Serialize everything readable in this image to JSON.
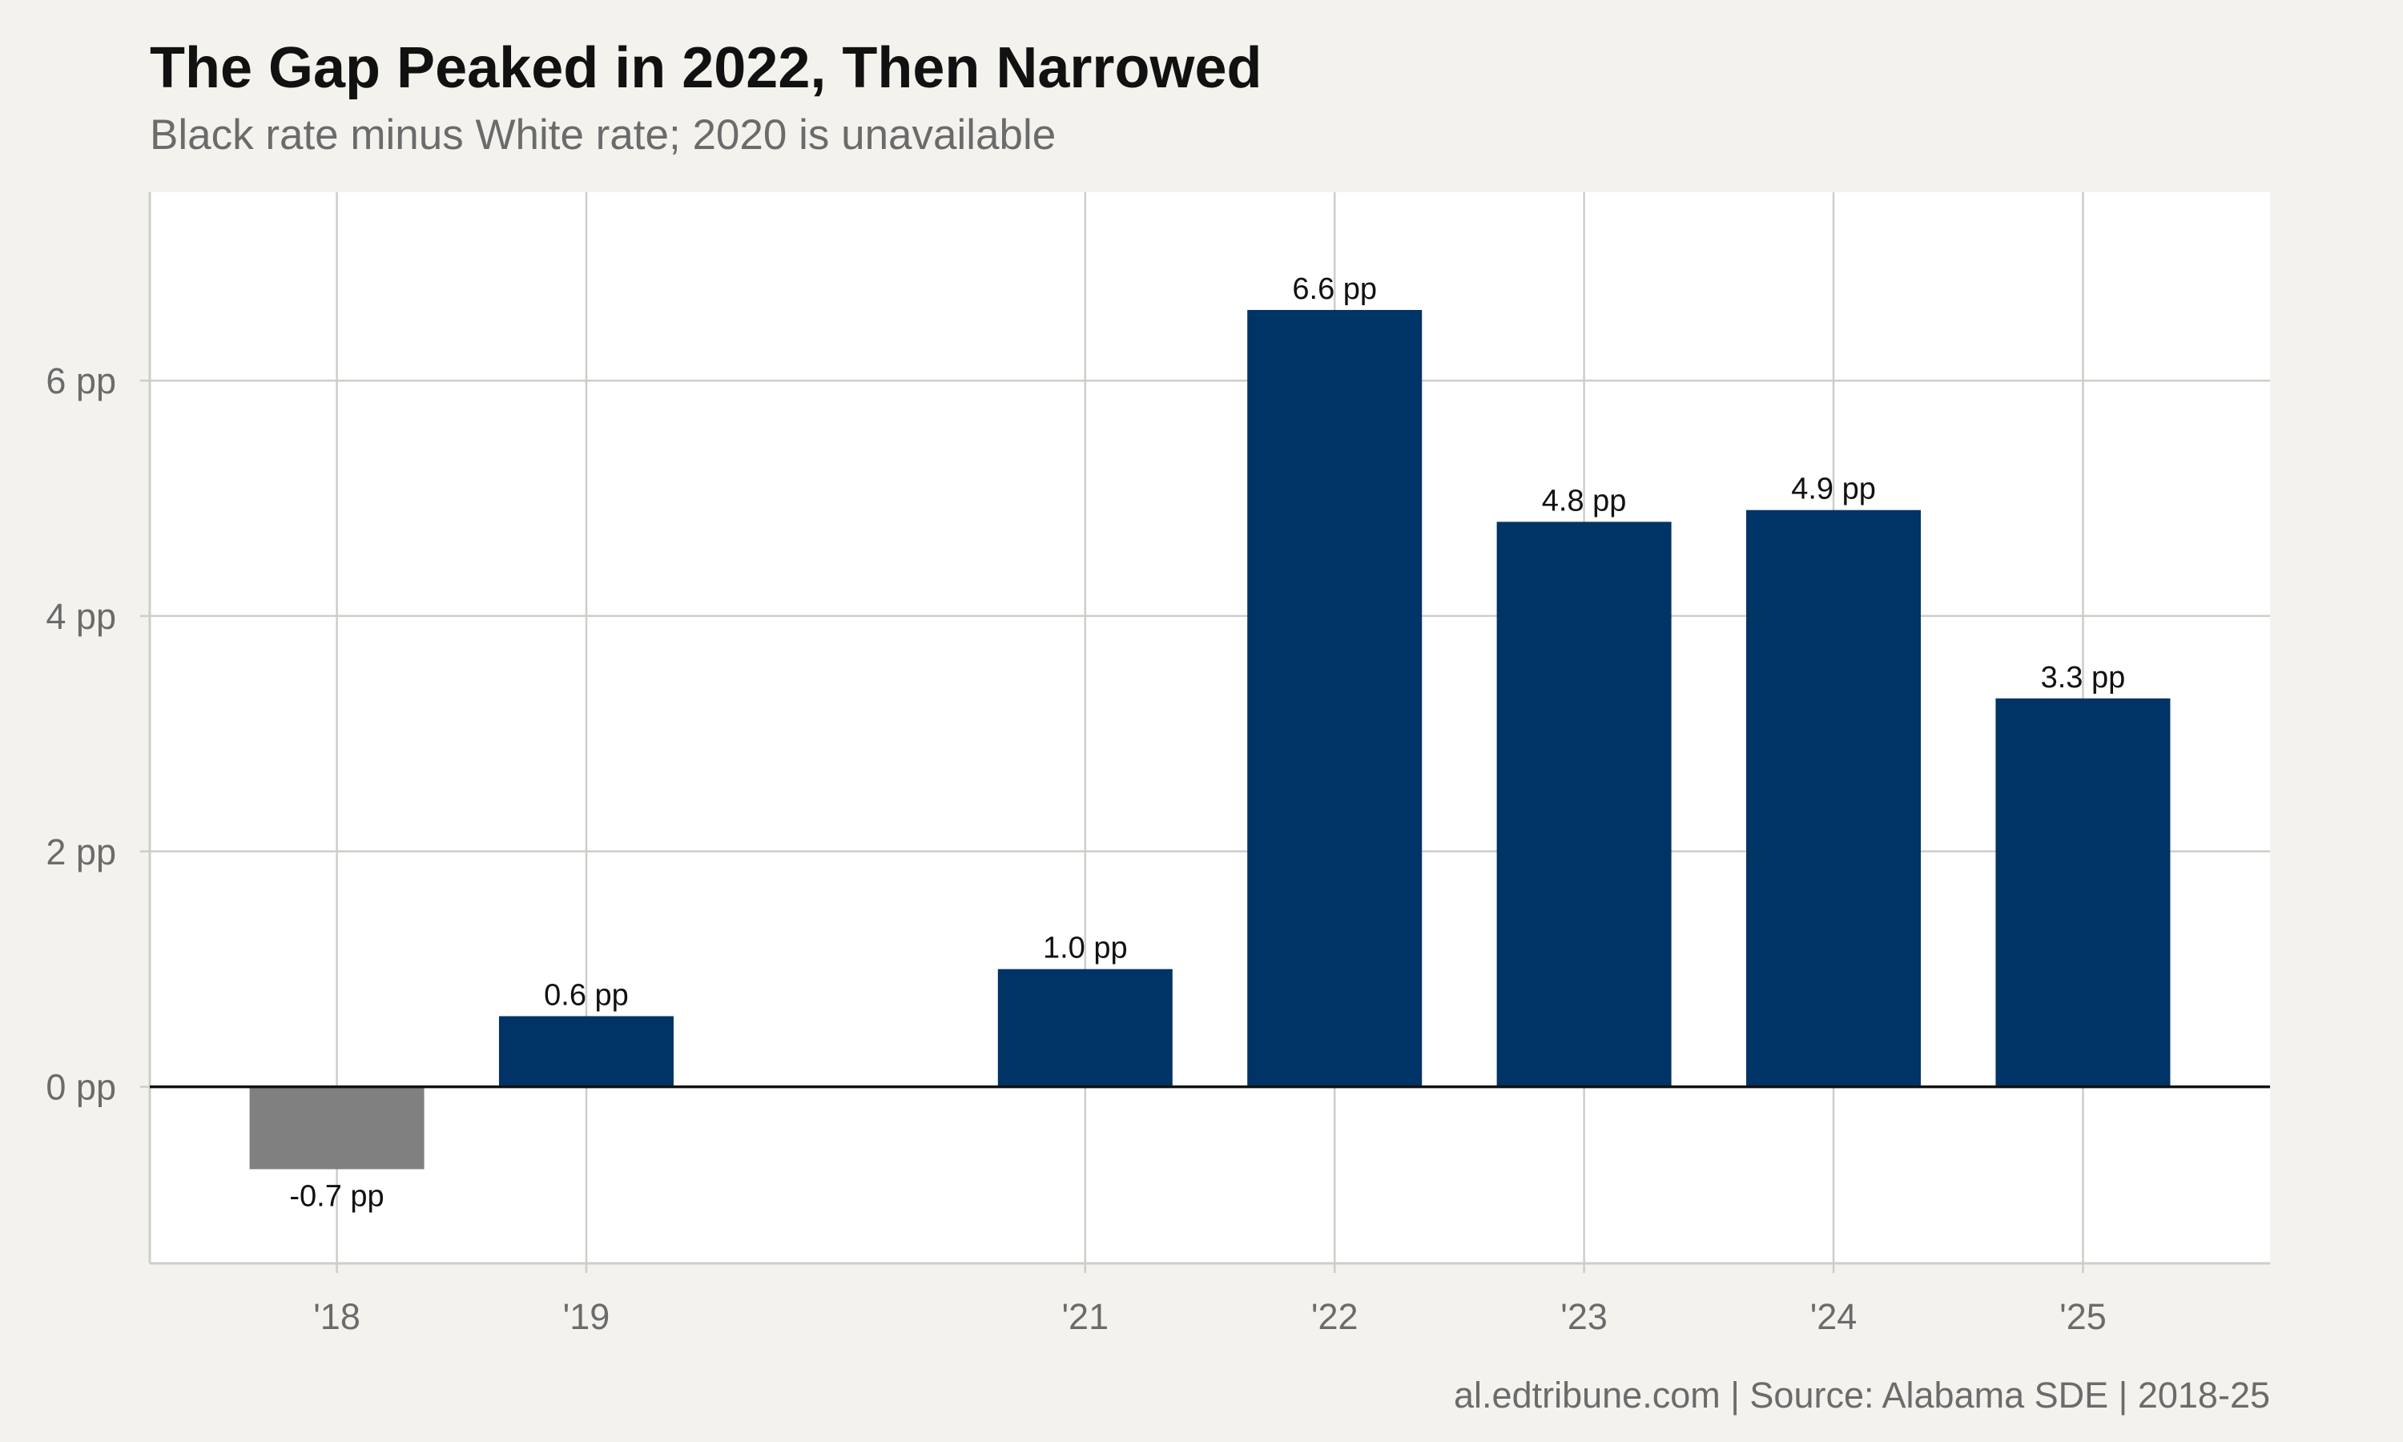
{
  "title": "The Gap Peaked in 2022, Then Narrowed",
  "subtitle": "Black rate minus White rate; 2020 is unavailable",
  "caption": "al.edtribune.com | Source: Alabama SDE | 2018-25",
  "colors": {
    "background": "#f4f2ed",
    "panel": "#ffffff",
    "grid": "#cfcdc8",
    "positive_bar": "#003366",
    "negative_bar": "#808080",
    "zero_line": "#111111"
  },
  "chart_data": {
    "type": "bar",
    "x_years": [
      2018,
      2019,
      2021,
      2022,
      2023,
      2024,
      2025
    ],
    "categories": [
      "'18",
      "'19",
      "'21",
      "'22",
      "'23",
      "'24",
      "'25"
    ],
    "values": [
      -0.7,
      0.6,
      1.0,
      6.6,
      4.8,
      4.9,
      3.3
    ],
    "data_labels": [
      "-0.7 pp",
      "0.6 pp",
      "1.0 pp",
      "6.6 pp",
      "4.8 pp",
      "4.9 pp",
      "3.3 pp"
    ],
    "y_ticks": [
      0,
      2,
      4,
      6
    ],
    "y_tick_labels": [
      "0 pp",
      "2 pp",
      "4 pp",
      "6 pp"
    ],
    "xlim": [
      2017.25,
      2025.75
    ],
    "ylim": [
      -1.5,
      7.6
    ],
    "unit": "pp",
    "grid": true,
    "legend": "none"
  }
}
